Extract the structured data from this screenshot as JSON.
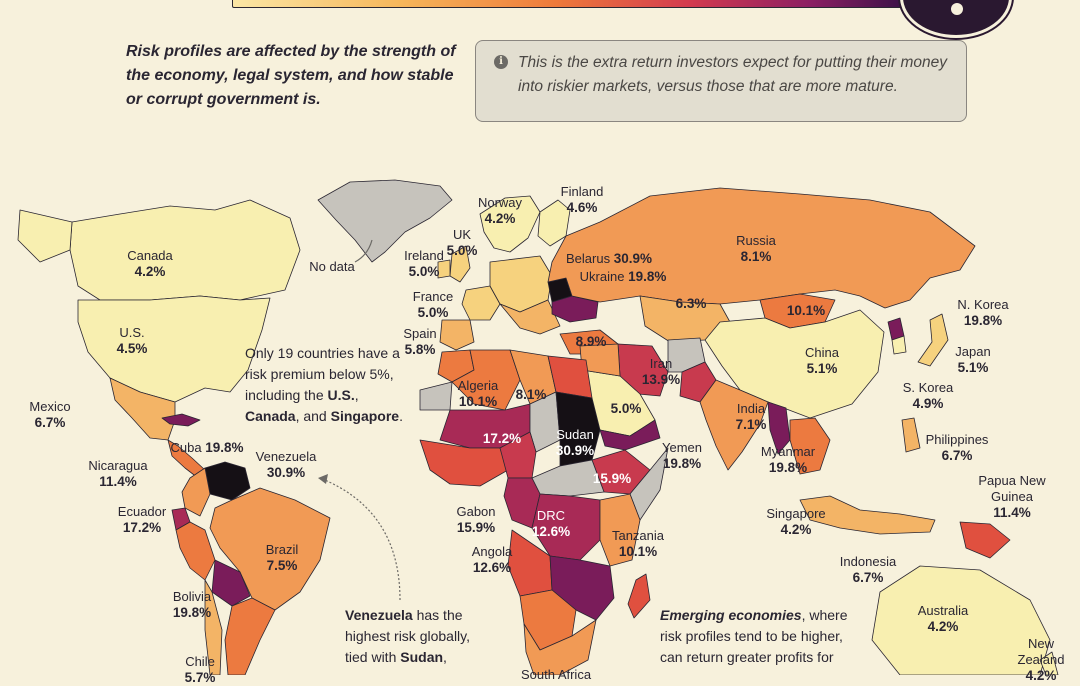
{
  "header": {
    "intro": "Risk profiles are affected by the strength of the economy, legal system, and how stable or corrupt government is.",
    "info": "This is the extra return investors expect for putting their money into riskier markets, versus those that are more mature."
  },
  "notes": {
    "below5_prefix": "Only 19 countries have a risk premium below 5%, including the ",
    "below5_us": "U.S.",
    "below5_sep1": ", ",
    "below5_canada": "Canada",
    "below5_sep2": ", and ",
    "below5_singapore": "Singapore",
    "below5_end": ".",
    "venezuela_bold": "Venezuela",
    "venezuela_rest": " has the highest risk globally, tied with ",
    "venezuela_sudan": "Sudan",
    "venezuela_tail": ",",
    "emerging_bold": "Emerging economies",
    "emerging_rest": ", where risk profiles tend to be higher, can return greater profits for",
    "nodata": "No data"
  },
  "colors": {
    "background": "#f7f1dc",
    "ocean_text": "#2a2632",
    "tier_lt5": "#f8efb0",
    "tier_5": "#f6d27e",
    "tier_6": "#f3b466",
    "tier_8": "#f19a55",
    "tier_10": "#ec7a40",
    "tier_12": "#e0503f",
    "tier_15": "#c83a4e",
    "tier_17": "#a82a56",
    "tier_19": "#7a1c5a",
    "tier_30": "#151015",
    "nodata": "#c6c3bc"
  },
  "countries": [
    {
      "name": "Canada",
      "value": "4.2%"
    },
    {
      "name": "U.S.",
      "value": "4.5%"
    },
    {
      "name": "Mexico",
      "value": "6.7%"
    },
    {
      "name": "Cuba",
      "value": "19.8%"
    },
    {
      "name": "Nicaragua",
      "value": "11.4%"
    },
    {
      "name": "Venezuela",
      "value": "30.9%"
    },
    {
      "name": "Ecuador",
      "value": "17.2%"
    },
    {
      "name": "Brazil",
      "value": "7.5%"
    },
    {
      "name": "Bolivia",
      "value": "19.8%"
    },
    {
      "name": "Chile",
      "value": "5.7%"
    },
    {
      "name": "Norway",
      "value": "4.2%"
    },
    {
      "name": "Finland",
      "value": "4.6%"
    },
    {
      "name": "UK",
      "value": "5.0%"
    },
    {
      "name": "Ireland",
      "value": "5.0%"
    },
    {
      "name": "France",
      "value": "5.0%"
    },
    {
      "name": "Spain",
      "value": "5.8%"
    },
    {
      "name": "Belarus",
      "value": "30.9%"
    },
    {
      "name": "Ukraine",
      "value": "19.8%"
    },
    {
      "name": "Russia",
      "value": "8.1%"
    },
    {
      "name": "",
      "value": "6.3%"
    },
    {
      "name": "",
      "value": "10.1%"
    },
    {
      "name": "",
      "value": "8.9%"
    },
    {
      "name": "Iran",
      "value": "13.9%"
    },
    {
      "name": "Algeria",
      "value": "10.1%"
    },
    {
      "name": "",
      "value": "8.1%"
    },
    {
      "name": "",
      "value": "17.2%"
    },
    {
      "name": "Sudan",
      "value": "30.9%"
    },
    {
      "name": "",
      "value": "5.0%"
    },
    {
      "name": "Yemen",
      "value": "19.8%"
    },
    {
      "name": "",
      "value": "15.9%"
    },
    {
      "name": "Gabon",
      "value": "15.9%"
    },
    {
      "name": "DRC",
      "value": "12.6%"
    },
    {
      "name": "Tanzania",
      "value": "10.1%"
    },
    {
      "name": "Angola",
      "value": "12.6%"
    },
    {
      "name": "South Africa",
      "value": ""
    },
    {
      "name": "China",
      "value": "5.1%"
    },
    {
      "name": "N. Korea",
      "value": "19.8%"
    },
    {
      "name": "Japan",
      "value": "5.1%"
    },
    {
      "name": "S. Korea",
      "value": "4.9%"
    },
    {
      "name": "India",
      "value": "7.1%"
    },
    {
      "name": "Myanmar",
      "value": "19.8%"
    },
    {
      "name": "Philippines",
      "value": "6.7%"
    },
    {
      "name": "Papua New Guinea",
      "value": "11.4%"
    },
    {
      "name": "Singapore",
      "value": "4.2%"
    },
    {
      "name": "Indonesia",
      "value": "6.7%"
    },
    {
      "name": "Australia",
      "value": "4.2%"
    },
    {
      "name": "New Zealand",
      "value": "4.2%"
    }
  ]
}
